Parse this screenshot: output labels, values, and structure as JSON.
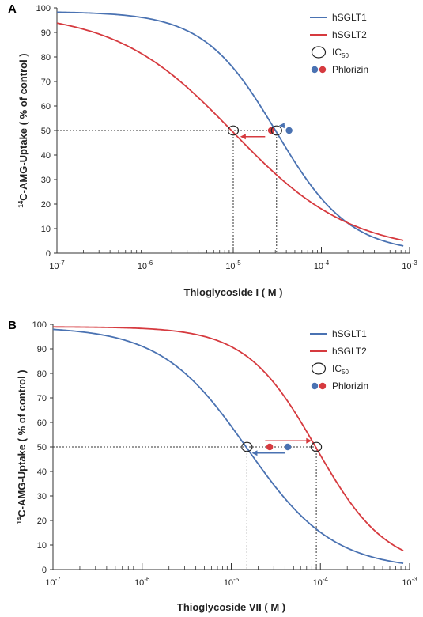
{
  "colors": {
    "hsglt1": "#4a72b2",
    "hsglt2": "#d63a3f",
    "axis": "#333333",
    "guide": "#333333"
  },
  "chart_data": [
    {
      "type": "line",
      "panel_label": "A",
      "xlabel": "Thioglycoside I ( M )",
      "ylabel": "C-AMG-Uptake ( % of control )",
      "ylabel_sup": "14",
      "x_scale": "log",
      "xlim": [
        1e-07,
        0.001
      ],
      "ylim": [
        0,
        100
      ],
      "x_ticks": [
        {
          "value": 1e-07,
          "base": "10",
          "exp": "-7"
        },
        {
          "value": 1e-06,
          "base": "10",
          "exp": "-6"
        },
        {
          "value": 1e-05,
          "base": "10",
          "exp": "-5"
        },
        {
          "value": 0.0001,
          "base": "10",
          "exp": "-4"
        },
        {
          "value": 0.001,
          "base": "10",
          "exp": "-3"
        }
      ],
      "y_ticks": [
        0,
        10,
        20,
        30,
        40,
        50,
        60,
        70,
        80,
        90,
        100
      ],
      "series": [
        {
          "name": "hSGLT1",
          "color_key": "hsglt1",
          "ic50": 3.1e-05,
          "hill": 1.05,
          "top": 98.5,
          "x_range": [
            1e-07,
            0.00085
          ]
        },
        {
          "name": "hSGLT2",
          "color_key": "hsglt2",
          "ic50": 1e-05,
          "hill": 0.65,
          "top": 98.5,
          "x_range": [
            1e-07,
            0.00085
          ]
        }
      ],
      "ic50_marks": [
        {
          "series": "hSGLT1",
          "x": 3.1e-05,
          "y": 50
        },
        {
          "series": "hSGLT2",
          "x": 1e-05,
          "y": 50
        }
      ],
      "phlorizin": [
        {
          "series": "hSGLT2",
          "color_key": "hsglt2",
          "x": 2.7e-05,
          "y": 50
        },
        {
          "series": "hSGLT1",
          "color_key": "hsglt1",
          "x": 4.3e-05,
          "y": 50
        }
      ],
      "arrows": [
        {
          "color_key": "hsglt2",
          "from": 2.3e-05,
          "to": 1.2e-05,
          "y": 47.5
        },
        {
          "color_key": "hsglt1",
          "from": 3.9e-05,
          "to": 3.3e-05,
          "y": 52
        }
      ],
      "guide_y": 50,
      "legend": {
        "placement": "top-right",
        "items": [
          {
            "kind": "line",
            "label": "hSGLT1",
            "color_key": "hsglt1"
          },
          {
            "kind": "line",
            "label": "hSGLT2",
            "color_key": "hsglt2"
          },
          {
            "kind": "circle",
            "label": "IC",
            "sub": "50"
          },
          {
            "kind": "dots",
            "label": "Phlorizin"
          }
        ]
      }
    },
    {
      "type": "line",
      "panel_label": "B",
      "xlabel": "Thioglycoside VII ( M )",
      "ylabel": "C-AMG-Uptake ( % of control )",
      "ylabel_sup": "14",
      "x_scale": "log",
      "xlim": [
        1e-07,
        0.001
      ],
      "ylim": [
        0,
        100
      ],
      "x_ticks": [
        {
          "value": 1e-07,
          "base": "10",
          "exp": "-7"
        },
        {
          "value": 1e-06,
          "base": "10",
          "exp": "-6"
        },
        {
          "value": 1e-05,
          "base": "10",
          "exp": "-5"
        },
        {
          "value": 0.0001,
          "base": "10",
          "exp": "-4"
        },
        {
          "value": 0.001,
          "base": "10",
          "exp": "-3"
        }
      ],
      "y_ticks": [
        0,
        10,
        20,
        30,
        40,
        50,
        60,
        70,
        80,
        90,
        100
      ],
      "series": [
        {
          "name": "hSGLT1",
          "color_key": "hsglt1",
          "ic50": 1.5e-05,
          "hill": 0.9,
          "top": 99,
          "x_range": [
            1e-07,
            0.00085
          ]
        },
        {
          "name": "hSGLT2",
          "color_key": "hsglt2",
          "ic50": 9e-05,
          "hill": 1.1,
          "top": 99,
          "x_range": [
            1e-07,
            0.00085
          ]
        }
      ],
      "ic50_marks": [
        {
          "series": "hSGLT1",
          "x": 1.5e-05,
          "y": 50
        },
        {
          "series": "hSGLT2",
          "x": 9e-05,
          "y": 50
        }
      ],
      "phlorizin": [
        {
          "series": "hSGLT2",
          "color_key": "hsglt2",
          "x": 2.7e-05,
          "y": 50
        },
        {
          "series": "hSGLT1",
          "color_key": "hsglt1",
          "x": 4.3e-05,
          "y": 50
        }
      ],
      "arrows": [
        {
          "color_key": "hsglt2",
          "from": 2.4e-05,
          "to": 8e-05,
          "y": 52.5
        },
        {
          "color_key": "hsglt1",
          "from": 4e-05,
          "to": 1.7e-05,
          "y": 47.5
        }
      ],
      "guide_y": 50,
      "legend": {
        "placement": "top-right",
        "items": [
          {
            "kind": "line",
            "label": "hSGLT1",
            "color_key": "hsglt1"
          },
          {
            "kind": "line",
            "label": "hSGLT2",
            "color_key": "hsglt2"
          },
          {
            "kind": "circle",
            "label": "IC",
            "sub": "50"
          },
          {
            "kind": "dots",
            "label": "Phlorizin"
          }
        ]
      }
    }
  ]
}
